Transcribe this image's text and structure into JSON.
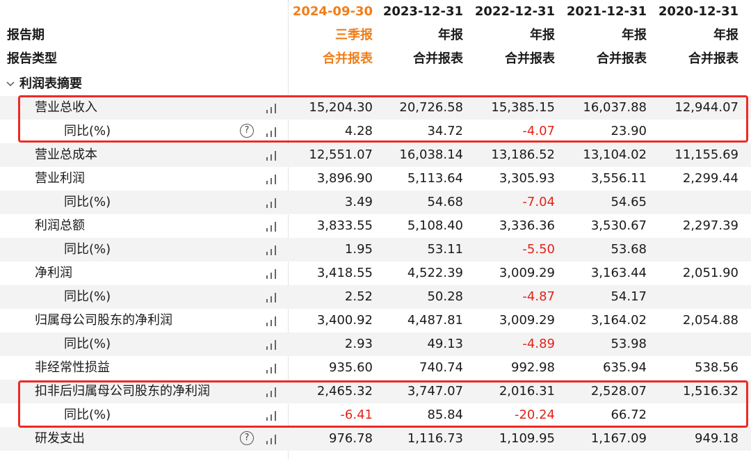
{
  "header": {
    "dates": [
      "2024-09-30",
      "2023-12-31",
      "2022-12-31",
      "2021-12-31",
      "2020-12-31"
    ],
    "period_label": "报告期",
    "periods": [
      "三季报",
      "年报",
      "年报",
      "年报",
      "年报"
    ],
    "type_label": "报告类型",
    "types": [
      "合并报表",
      "合并报表",
      "合并报表",
      "合并报表",
      "合并报表"
    ]
  },
  "section": {
    "title": "利润表摘要",
    "chevron": "chevron-down-icon"
  },
  "rows": [
    {
      "label": "营业总收入",
      "values": [
        "15,204.30",
        "20,726.58",
        "15,385.15",
        "16,037.88",
        "12,944.07"
      ]
    },
    {
      "label": "同比(%)",
      "values": [
        "4.28",
        "34.72",
        "-4.07",
        "23.90",
        ""
      ]
    },
    {
      "label": "营业总成本",
      "values": [
        "12,551.07",
        "16,038.14",
        "13,186.52",
        "13,104.02",
        "11,155.69"
      ]
    },
    {
      "label": "营业利润",
      "values": [
        "3,896.90",
        "5,113.64",
        "3,305.93",
        "3,556.11",
        "2,299.44"
      ]
    },
    {
      "label": "同比(%)",
      "values": [
        "3.49",
        "54.68",
        "-7.04",
        "54.65",
        ""
      ]
    },
    {
      "label": "利润总额",
      "values": [
        "3,833.55",
        "5,108.40",
        "3,336.36",
        "3,530.67",
        "2,297.39"
      ]
    },
    {
      "label": "同比(%)",
      "values": [
        "1.95",
        "53.11",
        "-5.50",
        "53.68",
        ""
      ]
    },
    {
      "label": "净利润",
      "values": [
        "3,418.55",
        "4,522.39",
        "3,009.29",
        "3,163.44",
        "2,051.90"
      ]
    },
    {
      "label": "同比(%)",
      "values": [
        "2.52",
        "50.28",
        "-4.87",
        "54.17",
        ""
      ]
    },
    {
      "label": "归属母公司股东的净利润",
      "values": [
        "3,400.92",
        "4,487.81",
        "3,009.29",
        "3,164.02",
        "2,054.88"
      ]
    },
    {
      "label": "同比(%)",
      "values": [
        "2.93",
        "49.13",
        "-4.89",
        "53.98",
        ""
      ]
    },
    {
      "label": "非经常性损益",
      "values": [
        "935.60",
        "740.74",
        "992.98",
        "635.94",
        "538.56"
      ]
    },
    {
      "label": "扣非后归属母公司股东的净利润",
      "values": [
        "2,465.32",
        "3,747.07",
        "2,016.31",
        "2,528.07",
        "1,516.32"
      ]
    },
    {
      "label": "同比(%)",
      "values": [
        "-6.41",
        "85.84",
        "-20.24",
        "66.72",
        ""
      ]
    },
    {
      "label": "研发支出",
      "values": [
        "976.78",
        "1,116.73",
        "1,109.95",
        "1,167.09",
        "949.18"
      ]
    }
  ],
  "help_icon_glyph": "?",
  "colors": {
    "accent_orange": "#ef7e1a",
    "negative_red": "#e2231a",
    "highlight_box": "#ee2a24",
    "stripe": "#f3f3f3"
  }
}
